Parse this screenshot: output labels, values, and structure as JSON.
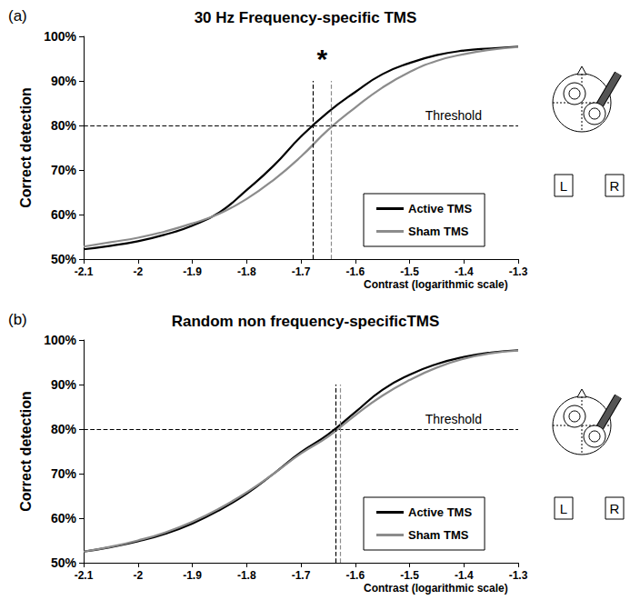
{
  "chart_data": [
    {
      "type": "line",
      "panel": "(a)",
      "title": "30 Hz Frequency-specific TMS",
      "x_label": "Contrast (logarithmic scale)",
      "y_label": "Correct detection",
      "x": [
        -2.1,
        -2.05,
        -2.0,
        -1.95,
        -1.9,
        -1.85,
        -1.8,
        -1.75,
        -1.7,
        -1.65,
        -1.6,
        -1.55,
        -1.5,
        -1.45,
        -1.4,
        -1.35,
        -1.3
      ],
      "series": [
        {
          "name": "Active TMS",
          "color": "#000000",
          "values": [
            52.2,
            53,
            54,
            55.5,
            57.5,
            60.5,
            65.5,
            71,
            77.5,
            83,
            87.5,
            91.5,
            94,
            95.8,
            96.8,
            97.3,
            97.7
          ],
          "threshold": -1.677
        },
        {
          "name": "Sham TMS",
          "color": "#8c8c8c",
          "values": [
            52.8,
            53.8,
            54.8,
            56.2,
            58,
            60.2,
            63.5,
            67.8,
            73,
            79,
            84,
            88.5,
            92,
            94.5,
            96,
            97,
            97.6
          ],
          "threshold": -1.645
        }
      ],
      "xlim": [
        -2.1,
        -1.3
      ],
      "ylim": [
        50,
        100
      ],
      "xticks": [
        -2.1,
        -2,
        -1.9,
        -1.8,
        -1.7,
        -1.6,
        -1.5,
        -1.4,
        -1.3
      ],
      "yticks": [
        {
          "value": 50,
          "label": "50%"
        },
        {
          "value": 60,
          "label": "60%"
        },
        {
          "value": 70,
          "label": "70%"
        },
        {
          "value": 80,
          "label": "80%"
        },
        {
          "value": 90,
          "label": "90%"
        },
        {
          "value": 100,
          "label": "100%"
        }
      ],
      "threshold_line": {
        "value": 80,
        "label": "Threshold"
      },
      "annotation": "*",
      "head_labels": [
        "L",
        "R"
      ],
      "legend": "lower right",
      "grid": false
    },
    {
      "type": "line",
      "panel": "(b)",
      "title": "Random non frequency-specificTMS",
      "x_label": "Contrast (logarithmic scale)",
      "y_label": "Correct detection",
      "x": [
        -2.1,
        -2.05,
        -2.0,
        -1.95,
        -1.9,
        -1.85,
        -1.8,
        -1.75,
        -1.7,
        -1.65,
        -1.6,
        -1.55,
        -1.5,
        -1.45,
        -1.4,
        -1.35,
        -1.3
      ],
      "series": [
        {
          "name": "Active TMS",
          "color": "#000000",
          "values": [
            52.5,
            53.5,
            54.8,
            56.5,
            58.8,
            61.8,
            65.5,
            70,
            74.8,
            78.8,
            83.8,
            88.8,
            92.2,
            94.6,
            96.2,
            97.2,
            97.7
          ],
          "threshold": -1.636
        },
        {
          "name": "Sham TMS",
          "color": "#8c8c8c",
          "values": [
            52.5,
            53.6,
            55,
            56.8,
            59.2,
            62.2,
            65.8,
            70,
            74.5,
            78.3,
            83.1,
            87.5,
            91,
            93.8,
            95.8,
            97,
            97.6
          ],
          "threshold": -1.627
        }
      ],
      "xlim": [
        -2.1,
        -1.3
      ],
      "ylim": [
        50,
        100
      ],
      "xticks": [
        -2.1,
        -2,
        -1.9,
        -1.8,
        -1.7,
        -1.6,
        -1.5,
        -1.4,
        -1.3
      ],
      "yticks": [
        {
          "value": 50,
          "label": "50%"
        },
        {
          "value": 60,
          "label": "60%"
        },
        {
          "value": 70,
          "label": "70%"
        },
        {
          "value": 80,
          "label": "80%"
        },
        {
          "value": 90,
          "label": "90%"
        },
        {
          "value": 100,
          "label": "100%"
        }
      ],
      "threshold_line": {
        "value": 80,
        "label": "Threshold"
      },
      "head_labels": [
        "L",
        "R"
      ],
      "legend": "lower right",
      "grid": false
    }
  ]
}
